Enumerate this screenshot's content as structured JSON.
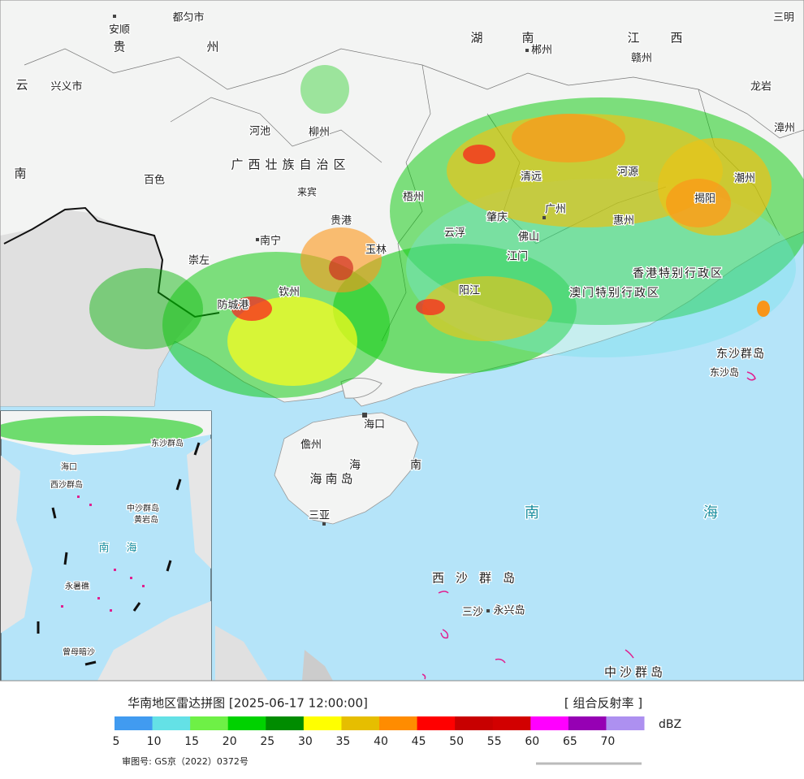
{
  "map": {
    "labels": [
      "都匀市",
      "安顺",
      "贵",
      "州",
      "云",
      "兴义市",
      "南",
      "河池",
      "柳州",
      "百色",
      "广西壮族自治区",
      "来宾",
      "贵港",
      "南宁",
      "玉林",
      "梧州",
      "崇左",
      "钦州",
      "防城港",
      "湖",
      "南",
      "郴州",
      "江",
      "西",
      "赣州",
      "龙岩",
      "三明",
      "漳州",
      "清远",
      "河源",
      "广州",
      "肇庆",
      "云浮",
      "佛山",
      "惠州",
      "揭阳",
      "潮州",
      "江门",
      "阳江",
      "香港特别行政区",
      "澳门特别行政区",
      "东沙群岛",
      "东沙岛",
      "海口",
      "儋州",
      "海南岛",
      "海",
      "南",
      "三亚",
      "南",
      "海",
      "西沙群岛",
      "三沙",
      "永兴岛",
      "中沙群岛",
      "海口",
      "东沙群岛",
      "西沙群岛",
      "中沙群岛",
      "黄岩岛",
      "南",
      "海",
      "永暑礁",
      "曾母暗沙"
    ]
  },
  "footer": {
    "title": "华南地区雷达拼图 [2025-06-17 12:00:00]",
    "product": "[ 组合反射率 ]",
    "unit": "dBZ",
    "approval": "审图号: GS京（2022）0372号"
  },
  "legend": {
    "ticks": [
      5,
      10,
      15,
      20,
      25,
      30,
      35,
      40,
      45,
      50,
      55,
      60,
      65,
      70
    ],
    "colors": [
      "#419bf0",
      "#64e1e6",
      "#6ef046",
      "#00d200",
      "#008c00",
      "#ffff00",
      "#e6be00",
      "#ff8c00",
      "#ff0000",
      "#c80000",
      "#d20000",
      "#ff00ff",
      "#9600b4",
      "#ad90f0"
    ]
  }
}
